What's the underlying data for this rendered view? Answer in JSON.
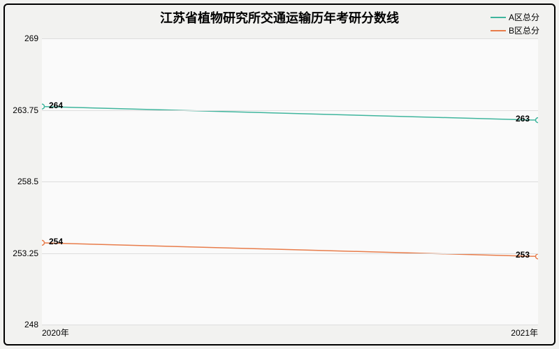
{
  "chart": {
    "type": "line",
    "title": "江苏省植物研究所交通运输历年考研分数线",
    "title_fontsize": 18,
    "background_color": "#f2f2f0",
    "plot_background": "#fafafa",
    "grid_color": "#dddddd",
    "border_color": "#000000",
    "x_categories": [
      "2020年",
      "2021年"
    ],
    "ylim": [
      248,
      269
    ],
    "y_ticks": [
      248,
      253.25,
      258.5,
      263.75,
      269
    ],
    "y_tick_labels": [
      "248",
      "253.25",
      "258.5",
      "263.75",
      "269"
    ],
    "label_fontsize": 12,
    "series": [
      {
        "name": "A区总分",
        "color": "#3fb59d",
        "values": [
          264,
          263
        ],
        "point_labels": [
          "264",
          "263"
        ],
        "marker": "circle",
        "line_width": 1.5
      },
      {
        "name": "B区总分",
        "color": "#e87c4a",
        "values": [
          254,
          253
        ],
        "point_labels": [
          "254",
          "253"
        ],
        "marker": "circle",
        "line_width": 1.5
      }
    ],
    "legend": {
      "position": "top-right",
      "fontsize": 12
    }
  }
}
